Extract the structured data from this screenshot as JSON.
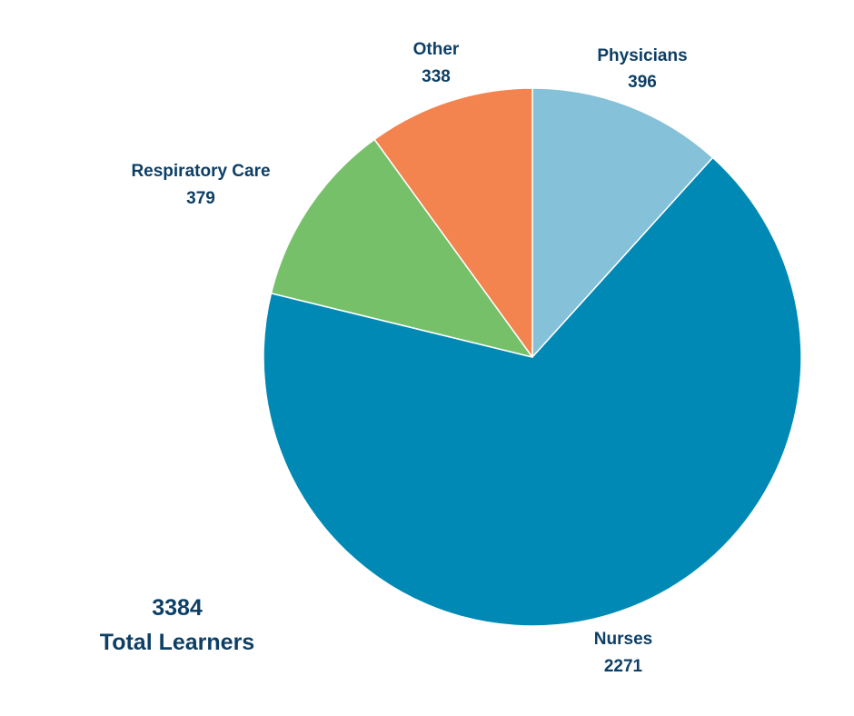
{
  "chart_data": {
    "type": "pie",
    "title": "",
    "slices": [
      {
        "label": "Physicians",
        "value": 396,
        "value_label": "396",
        "color": "#85c1d8"
      },
      {
        "label": "Nurses",
        "value": 2271,
        "value_label": "2271",
        "color": "#0089b4"
      },
      {
        "label": "Respiratory Care",
        "value": 379,
        "value_label": "379",
        "color": "#76c06a"
      },
      {
        "label": "Other",
        "value": 338,
        "value_label": "338",
        "color": "#f3834f"
      }
    ],
    "start_angle": "12 o'clock",
    "direction": "clockwise",
    "legend": "none",
    "total": {
      "value": "3384",
      "caption": "Total Learners"
    }
  }
}
